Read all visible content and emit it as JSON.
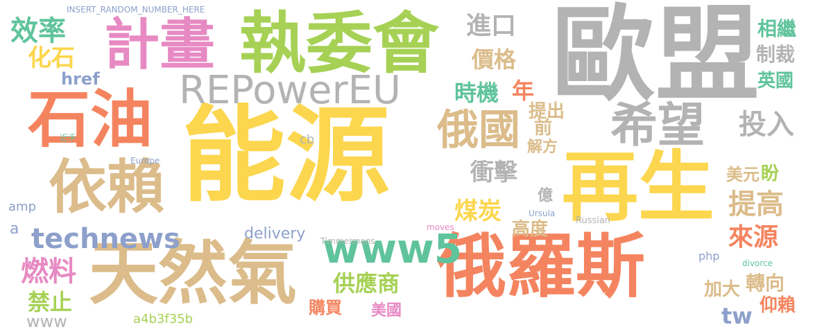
{
  "palette": {
    "orange": "#f4845f",
    "yellow": "#fcd64e",
    "green": "#a6d155",
    "tan": "#dbbc8a",
    "gray": "#b3b3b3",
    "blue": "#8da0cb",
    "teal": "#5fc39c",
    "pink": "#e78ac3"
  },
  "words": [
    "能源",
    "歐盟",
    "再生",
    "俄羅斯",
    "天然氣",
    "執委會",
    "計畫",
    "石油",
    "依賴",
    "REPowerEU",
    "希望",
    "俄國",
    "www5",
    "technews",
    "投入",
    "提高",
    "煤炭",
    "衝擊",
    "進口",
    "價格",
    "時機",
    "年",
    "效率",
    "化石",
    "燃料",
    "禁止",
    "供應商",
    "購買",
    "美國",
    "來源",
    "轉向",
    "加大",
    "tw",
    "仰賴",
    "相繼",
    "制裁",
    "英國",
    "盼",
    "美元",
    "億",
    "高度",
    "解方",
    "前",
    "提出",
    "delivery",
    "www",
    "a4b3f35b",
    "href",
    "amp",
    "a",
    "INSERT_RANDOM_NUMBER_HERE",
    "cb",
    "Europe",
    "Ursula",
    "Russian",
    "moves",
    "Timmermans",
    "php",
    "divorce",
    "近手"
  ]
}
